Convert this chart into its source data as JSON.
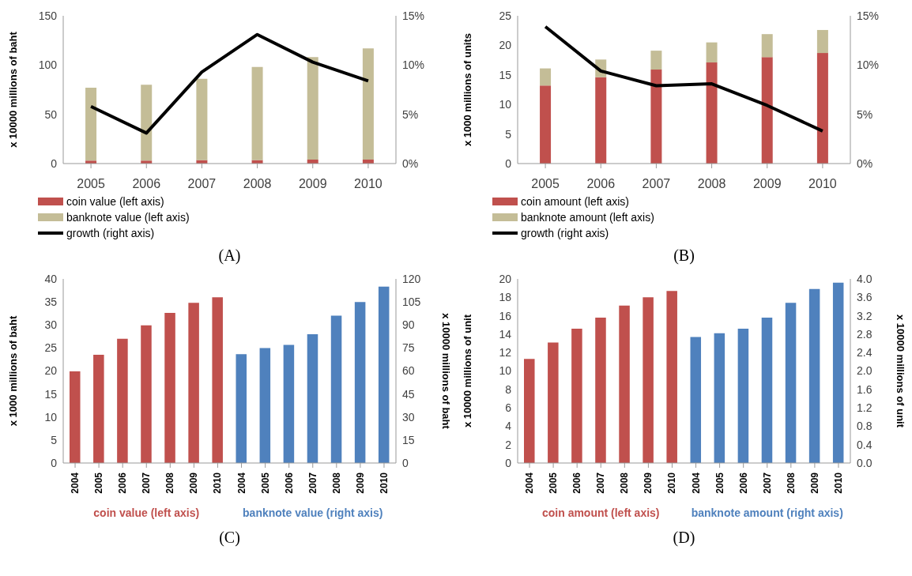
{
  "chart_data": [
    {
      "type": "bar",
      "stacked": true,
      "ylabel": "x 10000 millions of baht",
      "categories": [
        "2005",
        "2006",
        "2007",
        "2008",
        "2009",
        "2010"
      ],
      "ylim": [
        0,
        150
      ],
      "yticks": [
        0,
        50,
        100,
        150
      ],
      "y2lim": [
        0,
        15
      ],
      "y2ticks": [
        {
          "value": 0,
          "label": "0%"
        },
        {
          "value": 5,
          "label": "5%"
        },
        {
          "value": 10,
          "label": "10%"
        },
        {
          "value": 15,
          "label": "15%"
        }
      ],
      "legend": "bottom",
      "marker": "none",
      "annotations": [
        "(A)"
      ],
      "series": [
        {
          "name": "coin value (left axis)",
          "color": "#c0504d",
          "values": [
            3,
            3,
            3.5,
            3.5,
            4,
            4
          ]
        },
        {
          "name": "banknote value (left axis)",
          "color": "#c4bd97",
          "values": [
            74,
            77,
            82.5,
            94.5,
            104,
            113
          ]
        },
        {
          "name": "growth (right axis)",
          "type": "line",
          "axis": "y2",
          "color": "#000000",
          "values": [
            5.8,
            3.1,
            9.3,
            13.1,
            10.3,
            8.4
          ]
        }
      ]
    },
    {
      "type": "bar",
      "stacked": true,
      "ylabel": "x 1000 millions of units",
      "categories": [
        "2005",
        "2006",
        "2007",
        "2008",
        "2009",
        "2010"
      ],
      "ylim": [
        0,
        25
      ],
      "yticks": [
        0,
        5,
        10,
        15,
        20,
        25
      ],
      "y2lim": [
        0,
        15
      ],
      "y2ticks": [
        {
          "value": 0,
          "label": "0%"
        },
        {
          "value": 5,
          "label": "5%"
        },
        {
          "value": 10,
          "label": "10%"
        },
        {
          "value": 15,
          "label": "15%"
        }
      ],
      "legend": "bottom",
      "marker": "none",
      "annotations": [
        "(B)"
      ],
      "series": [
        {
          "name": "coin amount (left axis)",
          "color": "#c0504d",
          "values": [
            13.2,
            14.6,
            15.9,
            17.1,
            18.0,
            18.7
          ]
        },
        {
          "name": "banknote amount (left axis)",
          "color": "#c4bd97",
          "values": [
            2.9,
            3.0,
            3.2,
            3.4,
            3.9,
            3.9
          ]
        },
        {
          "name": "growth (right axis)",
          "type": "line",
          "axis": "y2",
          "color": "#000000",
          "values": [
            13.9,
            9.4,
            7.9,
            8.1,
            5.9,
            3.3
          ]
        }
      ]
    },
    {
      "type": "bar",
      "ylabel": "x 1000 millions of baht",
      "y2label": "x 10000 millions of baht",
      "categories": [
        "2004",
        "2005",
        "2006",
        "2007",
        "2008",
        "2009",
        "2010",
        "2004",
        "2005",
        "2006",
        "2007",
        "2008",
        "2009",
        "2010"
      ],
      "ylim": [
        0,
        40
      ],
      "yticks": [
        0,
        5,
        10,
        15,
        20,
        25,
        30,
        35,
        40
      ],
      "y2lim": [
        0,
        120
      ],
      "y2ticks": [
        0,
        15,
        30,
        45,
        60,
        75,
        90,
        105,
        120
      ],
      "legend": false,
      "annotations": [
        "(C)"
      ],
      "series": [
        {
          "name": "coin value (left axis)",
          "color": "#c0504d",
          "values": [
            19.9,
            23.5,
            27,
            29.9,
            32.6,
            34.8,
            36,
            null,
            null,
            null,
            null,
            null,
            null,
            null
          ]
        },
        {
          "name": "banknote value (right axis)",
          "axis": "y2",
          "color": "#4f81bd",
          "values": [
            null,
            null,
            null,
            null,
            null,
            null,
            null,
            71,
            75,
            77,
            84,
            96,
            105,
            115
          ]
        }
      ]
    },
    {
      "type": "bar",
      "ylabel": "x 10000 millions of unit",
      "y2label": "x 10000 millions of unit",
      "categories": [
        "2004",
        "2005",
        "2006",
        "2007",
        "2008",
        "2009",
        "2010",
        "2004",
        "2005",
        "2006",
        "2007",
        "2008",
        "2009",
        "2010"
      ],
      "ylim": [
        0,
        20
      ],
      "yticks": [
        0,
        2,
        4,
        6,
        8,
        10,
        12,
        14,
        16,
        18,
        20
      ],
      "y2lim": [
        0,
        4
      ],
      "y2ticks": [
        {
          "value": 0,
          "label": "0.0"
        },
        0.4,
        0.8,
        1.2,
        1.6,
        {
          "value": 2,
          "label": "2.0"
        },
        2.4,
        2.8,
        3.2,
        3.6,
        {
          "value": 4,
          "label": "4.0"
        }
      ],
      "legend": false,
      "annotations": [
        "(D)"
      ],
      "series": [
        {
          "name": "coin amount (left axis)",
          "color": "#c0504d",
          "values": [
            11.3,
            13.1,
            14.6,
            15.8,
            17.1,
            18.0,
            18.7,
            null,
            null,
            null,
            null,
            null,
            null,
            null
          ]
        },
        {
          "name": "banknote amount (right axis)",
          "axis": "y2",
          "color": "#4f81bd",
          "values": [
            null,
            null,
            null,
            null,
            null,
            null,
            null,
            2.74,
            2.82,
            2.92,
            3.16,
            3.48,
            3.78,
            3.92
          ]
        }
      ]
    }
  ]
}
